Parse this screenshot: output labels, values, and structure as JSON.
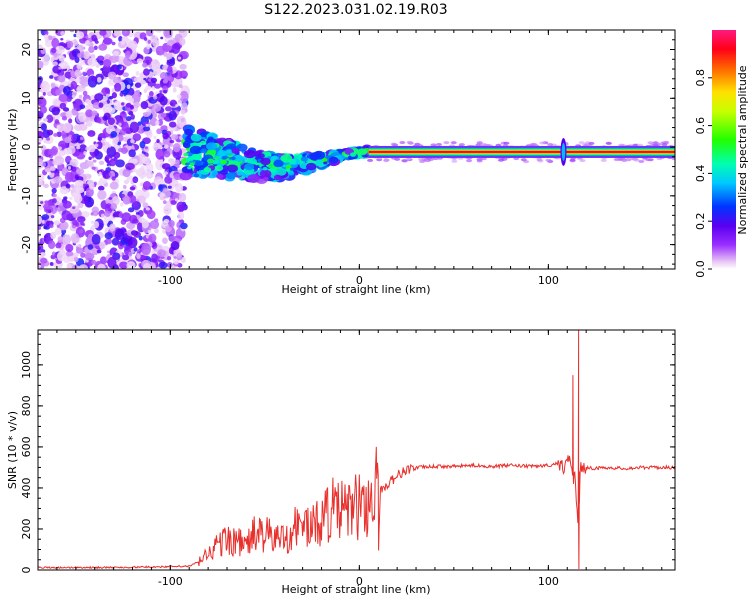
{
  "figure_title": "S122.2023.031.02.19.R03",
  "chart_data": [
    {
      "type": "heatmap",
      "description_free": true,
      "xlabel": "Height of straight line (km)",
      "ylabel": "Frequency (Hz)",
      "xlim": [
        -170,
        167
      ],
      "ylim": [
        -25,
        24
      ],
      "x_ticks": [
        -100,
        0,
        100
      ],
      "x_tick_labels": [
        "-100",
        "0",
        "100"
      ],
      "y_ticks": [
        -20,
        -10,
        0,
        10,
        20
      ],
      "y_tick_labels": [
        "-20",
        "-10",
        "0",
        "10",
        "20"
      ],
      "colorbar": {
        "label": "Normalized spectral amplitude",
        "range": [
          0,
          1
        ],
        "ticks": [
          0.0,
          0.2,
          0.4,
          0.6,
          0.8
        ],
        "tick_labels": [
          "0.0",
          "0.2",
          "0.4",
          "0.6",
          "0.8"
        ],
        "colormap": "hsv-like (white, violet, blue, cyan, green, yellow, orange, red, pink)"
      },
      "features": {
        "noise_region_x": [
          -170,
          -92
        ],
        "transition_region_x": [
          -92,
          5
        ],
        "signal_line_x": [
          5,
          167
        ],
        "signal_frequency_hz": -1,
        "spike_x": 108
      }
    },
    {
      "type": "line",
      "xlabel": "Height of straight line (km)",
      "ylabel": "SNR (10 * v/v)",
      "xlim": [
        -170,
        167
      ],
      "ylim": [
        0,
        1170
      ],
      "x_ticks": [
        -100,
        0,
        100
      ],
      "x_tick_labels": [
        "-100",
        "0",
        "100"
      ],
      "y_ticks": [
        0,
        200,
        400,
        600,
        800,
        1000
      ],
      "y_tick_labels": [
        "0",
        "200",
        "400",
        "600",
        "800",
        "1000"
      ],
      "series": [
        {
          "color": "#e8302c",
          "x": [
            -170,
            -150,
            -130,
            -110,
            -90,
            -85,
            -80,
            -75,
            -70,
            -65,
            -60,
            -55,
            -50,
            -45,
            -40,
            -35,
            -30,
            -25,
            -20,
            -15,
            -10,
            -5,
            0,
            5,
            8,
            10,
            12,
            15,
            20,
            25,
            30,
            40,
            50,
            60,
            70,
            80,
            90,
            100,
            105,
            108,
            110,
            112,
            113,
            114,
            115,
            116,
            117,
            118,
            120,
            125,
            130,
            140,
            150,
            160,
            167
          ],
          "y": [
            12,
            12,
            12,
            15,
            18,
            40,
            80,
            120,
            150,
            140,
            120,
            180,
            170,
            160,
            150,
            200,
            230,
            200,
            250,
            300,
            280,
            300,
            310,
            330,
            380,
            360,
            390,
            420,
            460,
            490,
            500,
            505,
            505,
            510,
            505,
            510,
            505,
            510,
            520,
            500,
            540,
            520,
            480,
            450,
            300,
            230,
            500,
            495,
            500,
            495,
            500,
            495,
            500,
            500,
            500
          ]
        }
      ],
      "annotations": {
        "spike_x": 116,
        "spike_max": 1170,
        "spike_min": 5,
        "secondary_spike_x": 113,
        "secondary_spike_max": 950,
        "peak_near_x": 9,
        "peak_near_value": 600,
        "dip_near_x": 10,
        "dip_near_value": 95
      }
    }
  ]
}
